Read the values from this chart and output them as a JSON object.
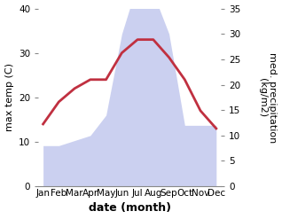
{
  "months": [
    "Jan",
    "Feb",
    "Mar",
    "Apr",
    "May",
    "Jun",
    "Jul",
    "Aug",
    "Sep",
    "Oct",
    "Nov",
    "Dec"
  ],
  "temp_max": [
    14,
    19,
    22,
    24,
    24,
    30,
    33,
    33,
    29,
    24,
    17,
    13
  ],
  "precipitation": [
    8,
    8,
    9,
    10,
    14,
    30,
    40,
    38,
    30,
    12,
    12,
    12
  ],
  "temp_ylim": [
    0,
    40
  ],
  "precip_ylim": [
    0,
    35
  ],
  "temp_yticks": [
    0,
    10,
    20,
    30,
    40
  ],
  "precip_yticks": [
    0,
    5,
    10,
    15,
    20,
    25,
    30,
    35
  ],
  "fill_color": "#b0b8e8",
  "fill_alpha": 0.65,
  "line_color": "#c03040",
  "line_width": 2.0,
  "xlabel": "date (month)",
  "ylabel_left": "max temp (C)",
  "ylabel_right": "med. precipitation\n(kg/m2)",
  "bg_color": "#ffffff",
  "xlabel_fontsize": 9,
  "ylabel_fontsize": 8,
  "tick_fontsize": 7.5
}
